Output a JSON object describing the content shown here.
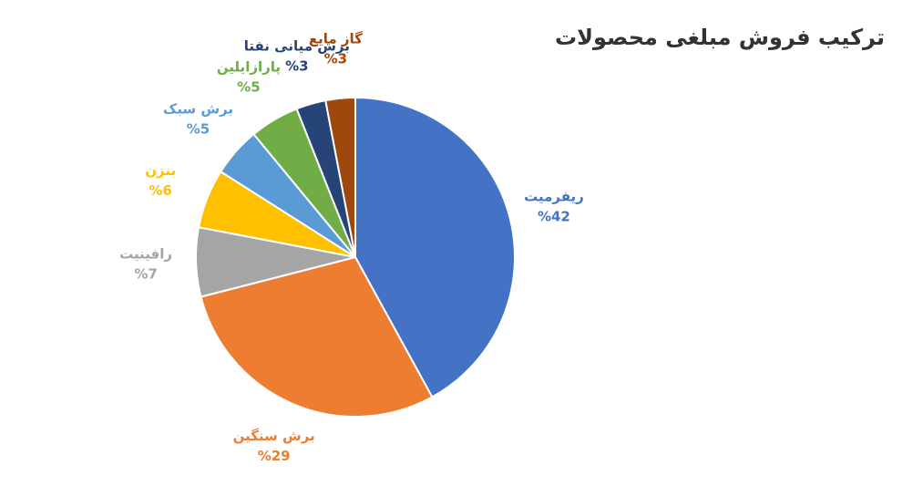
{
  "chart_data": {
    "type": "pie",
    "title": "ترکیب فروش مبلغی محصولات",
    "categories": [
      "ریفرمیت",
      "برش سنگین",
      "رافینیت",
      "بنزن",
      "برش سبک",
      "پارازایلین",
      "برش میانی نفتا",
      "گاز مایع"
    ],
    "values": [
      42,
      29,
      7,
      6,
      5,
      5,
      3,
      3
    ],
    "value_labels": [
      "%42",
      "%29",
      "%7",
      "%6",
      "%5",
      "%5",
      "%3",
      "%3"
    ],
    "colors": [
      "#4472c4",
      "#ed7d31",
      "#a5a5a5",
      "#ffc000",
      "#5b9bd5",
      "#70ad47",
      "#264478",
      "#9e480e"
    ]
  }
}
